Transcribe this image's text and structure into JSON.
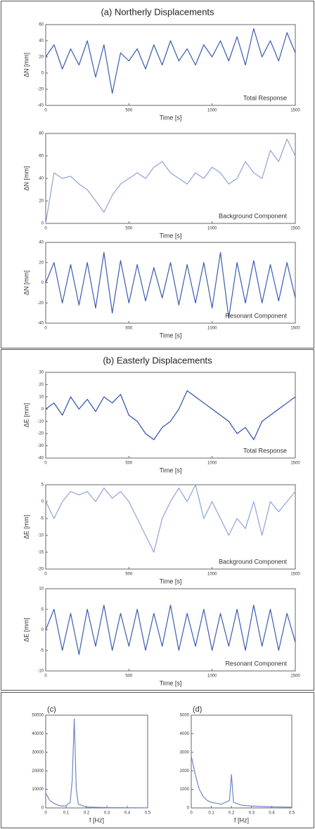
{
  "headings": [
    "(a) Northerly Displacements",
    "(b) Easterly Displacements"
  ],
  "chart_data": [
    {
      "type": "line",
      "color": "#3a5cb0",
      "xlabel": "Time [s]",
      "ylabel": "ΔN [mm]",
      "annotation": "Total Response",
      "x": [
        0,
        50,
        100,
        150,
        200,
        250,
        300,
        350,
        400,
        450,
        500,
        550,
        600,
        650,
        700,
        750,
        800,
        850,
        900,
        950,
        1000,
        1050,
        1100,
        1150,
        1200,
        1250,
        1300,
        1350,
        1400,
        1450,
        1500
      ],
      "values": [
        20,
        35,
        5,
        30,
        10,
        40,
        -5,
        35,
        -25,
        25,
        15,
        30,
        5,
        35,
        10,
        40,
        15,
        30,
        10,
        35,
        20,
        40,
        15,
        45,
        10,
        55,
        20,
        40,
        15,
        50,
        25
      ],
      "xlim": [
        0,
        1500
      ],
      "xticks": [
        0,
        500,
        1000,
        1500
      ],
      "ylim": [
        -40,
        60
      ],
      "yticks": [
        -40,
        -20,
        0,
        20,
        40,
        60
      ]
    },
    {
      "type": "line",
      "color": "#8fa2d8",
      "xlabel": "Time [s]",
      "ylabel": "ΔN [mm]",
      "annotation": "Background Component",
      "x": [
        0,
        50,
        100,
        150,
        200,
        250,
        300,
        350,
        400,
        450,
        500,
        550,
        600,
        650,
        700,
        750,
        800,
        850,
        900,
        950,
        1000,
        1050,
        1100,
        1150,
        1200,
        1250,
        1300,
        1350,
        1400,
        1450,
        1500
      ],
      "values": [
        0,
        45,
        40,
        42,
        35,
        30,
        20,
        10,
        25,
        35,
        40,
        45,
        40,
        50,
        55,
        45,
        40,
        35,
        45,
        40,
        50,
        45,
        35,
        40,
        55,
        45,
        40,
        65,
        55,
        75,
        60
      ],
      "xlim": [
        0,
        1500
      ],
      "xticks": [
        0,
        500,
        1000,
        1500
      ],
      "ylim": [
        0,
        80
      ],
      "yticks": [
        0,
        20,
        40,
        60,
        80
      ]
    },
    {
      "type": "line",
      "color": "#3a5cb0",
      "xlabel": "Time [s]",
      "ylabel": "ΔN [mm]",
      "annotation": "Resonant Component",
      "x": [
        0,
        50,
        100,
        150,
        200,
        250,
        300,
        350,
        400,
        450,
        500,
        550,
        600,
        650,
        700,
        750,
        800,
        850,
        900,
        950,
        1000,
        1050,
        1100,
        1150,
        1200,
        1250,
        1300,
        1350,
        1400,
        1450,
        1500
      ],
      "values": [
        0,
        20,
        -20,
        18,
        -22,
        20,
        -25,
        30,
        -30,
        22,
        -20,
        18,
        -18,
        15,
        -15,
        20,
        -22,
        18,
        -20,
        20,
        -25,
        30,
        -35,
        20,
        -20,
        22,
        -20,
        18,
        -18,
        20,
        -15
      ],
      "xlim": [
        0,
        1500
      ],
      "xticks": [
        0,
        500,
        1000,
        1500
      ],
      "ylim": [
        -40,
        40
      ],
      "yticks": [
        -40,
        -20,
        0,
        20,
        40
      ]
    },
    {
      "type": "line",
      "color": "#2a4ea8",
      "xlabel": "Time [s]",
      "ylabel": "ΔE [mm]",
      "annotation": "Total Response",
      "x": [
        0,
        50,
        100,
        150,
        200,
        250,
        300,
        350,
        400,
        450,
        500,
        550,
        600,
        650,
        700,
        750,
        800,
        850,
        900,
        950,
        1000,
        1050,
        1100,
        1150,
        1200,
        1250,
        1300,
        1350,
        1400,
        1450,
        1500
      ],
      "values": [
        0,
        5,
        -5,
        10,
        0,
        8,
        -2,
        10,
        5,
        12,
        -5,
        -10,
        -20,
        -25,
        -15,
        -10,
        0,
        15,
        10,
        5,
        0,
        -5,
        -10,
        -20,
        -15,
        -25,
        -10,
        -5,
        0,
        5,
        10
      ],
      "xlim": [
        0,
        1500
      ],
      "xticks": [
        0,
        500,
        1000,
        1500
      ],
      "ylim": [
        -40,
        30
      ],
      "yticks": [
        -40,
        -30,
        -20,
        -10,
        0,
        10,
        20,
        30
      ]
    },
    {
      "type": "line",
      "color": "#8fa2d8",
      "xlabel": "Time [s]",
      "ylabel": "ΔE [mm]",
      "annotation": "Background Component",
      "x": [
        0,
        50,
        100,
        150,
        200,
        250,
        300,
        350,
        400,
        450,
        500,
        550,
        600,
        650,
        700,
        750,
        800,
        850,
        900,
        950,
        1000,
        1050,
        1100,
        1150,
        1200,
        1250,
        1300,
        1350,
        1400,
        1450,
        1500
      ],
      "values": [
        0,
        -5,
        0,
        3,
        2,
        3,
        0,
        4,
        1,
        3,
        0,
        -5,
        -10,
        -15,
        -5,
        0,
        4,
        0,
        5,
        -5,
        0,
        -5,
        -10,
        -5,
        -8,
        0,
        -10,
        0,
        -3,
        0,
        3
      ],
      "xlim": [
        0,
        1500
      ],
      "xticks": [
        0,
        500,
        1000,
        1500
      ],
      "ylim": [
        -20,
        5
      ],
      "yticks": [
        -20,
        -15,
        -10,
        -5,
        0,
        5
      ]
    },
    {
      "type": "line",
      "color": "#3a5cb0",
      "xlabel": "Time [s]",
      "ylabel": "ΔE [mm]",
      "annotation": "Resonant Component",
      "x": [
        0,
        50,
        100,
        150,
        200,
        250,
        300,
        350,
        400,
        450,
        500,
        550,
        600,
        650,
        700,
        750,
        800,
        850,
        900,
        950,
        1000,
        1050,
        1100,
        1150,
        1200,
        1250,
        1300,
        1350,
        1400,
        1450,
        1500
      ],
      "values": [
        0,
        5,
        -5,
        4,
        -6,
        5,
        -4,
        6,
        -5,
        4,
        -4,
        5,
        -5,
        4,
        -4,
        6,
        -5,
        4,
        -4,
        5,
        -5,
        4,
        -4,
        5,
        -5,
        6,
        -4,
        5,
        -5,
        4,
        -3
      ],
      "xlim": [
        0,
        1500
      ],
      "xticks": [
        0,
        500,
        1000,
        1500
      ],
      "ylim": [
        -10,
        10
      ],
      "yticks": [
        -10,
        -5,
        0,
        5,
        10
      ]
    },
    {
      "type": "line",
      "color": "#6f86c8",
      "xlabel": "f [Hz]",
      "label": "(c)",
      "x": [
        0,
        0.02,
        0.04,
        0.06,
        0.08,
        0.1,
        0.12,
        0.13,
        0.14,
        0.15,
        0.16,
        0.2,
        0.3,
        0.4,
        0.5
      ],
      "values": [
        8000,
        4000,
        2500,
        1500,
        1000,
        1200,
        3000,
        15000,
        48000,
        10000,
        2000,
        500,
        200,
        100,
        50
      ],
      "xlim": [
        0,
        0.5
      ],
      "xticks": [
        0,
        0.1,
        0.2,
        0.3,
        0.4,
        0.5
      ],
      "ylim": [
        0,
        50000
      ],
      "yticks": [
        0,
        10000,
        20000,
        30000,
        40000,
        50000
      ]
    },
    {
      "type": "line",
      "color": "#6f86c8",
      "xlabel": "f [Hz]",
      "label": "(d)",
      "x": [
        0,
        0.02,
        0.04,
        0.06,
        0.08,
        0.1,
        0.15,
        0.19,
        0.2,
        0.21,
        0.25,
        0.3,
        0.4,
        0.5
      ],
      "values": [
        2800,
        1800,
        1000,
        600,
        400,
        300,
        200,
        400,
        1800,
        300,
        150,
        100,
        60,
        40
      ],
      "xlim": [
        0,
        0.5
      ],
      "xticks": [
        0,
        0.1,
        0.2,
        0.3,
        0.4,
        0.5
      ],
      "ylim": [
        0,
        5000
      ],
      "yticks": [
        0,
        1000,
        2000,
        3000,
        4000,
        5000
      ]
    }
  ]
}
